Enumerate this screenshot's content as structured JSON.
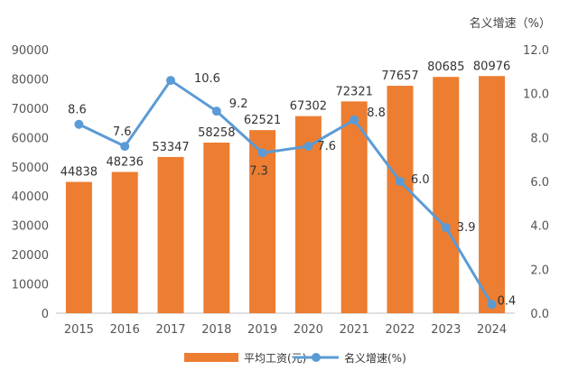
{
  "chart_data": {
    "type": "bar",
    "categories": [
      "2015",
      "2016",
      "2017",
      "2018",
      "2019",
      "2020",
      "2021",
      "2022",
      "2023",
      "2024"
    ],
    "series": [
      {
        "name": "平均工资(元)",
        "type": "bar",
        "axis": "left",
        "color": "#ED7D31",
        "values": [
          44838,
          48236,
          53347,
          58258,
          62521,
          67302,
          72321,
          77657,
          80685,
          80976
        ]
      },
      {
        "name": "名义增速(%)",
        "type": "line",
        "axis": "right",
        "color": "#5B9BD5",
        "values": [
          8.6,
          7.6,
          10.6,
          9.2,
          7.3,
          7.6,
          8.8,
          6.0,
          3.9,
          0.4
        ]
      }
    ],
    "bar_labels": [
      "44838",
      "48236",
      "53347",
      "58258",
      "62521",
      "67302",
      "72321",
      "77657",
      "80685",
      "80976"
    ],
    "line_labels": [
      "8.6",
      "7.6",
      "10.6",
      "9.2",
      "7.3",
      "7.6",
      "8.8",
      "6.0",
      "3.9",
      "0.4"
    ],
    "y_left": {
      "lim": [
        0,
        90000
      ],
      "ticks": [
        0,
        10000,
        20000,
        30000,
        40000,
        50000,
        60000,
        70000,
        80000,
        90000
      ],
      "tick_labels": [
        "0",
        "10000",
        "20000",
        "30000",
        "40000",
        "50000",
        "60000",
        "70000",
        "80000",
        "90000"
      ]
    },
    "y_right": {
      "title": "名义增速（%）",
      "lim": [
        0,
        12
      ],
      "ticks": [
        0,
        2,
        4,
        6,
        8,
        10,
        12
      ],
      "tick_labels": [
        "0.0",
        "2.0",
        "4.0",
        "6.0",
        "8.0",
        "10.0",
        "12.0"
      ]
    },
    "legend": {
      "position": "bottom",
      "items": [
        "平均工资(元)",
        "名义增速(%)"
      ]
    },
    "grid": false
  }
}
